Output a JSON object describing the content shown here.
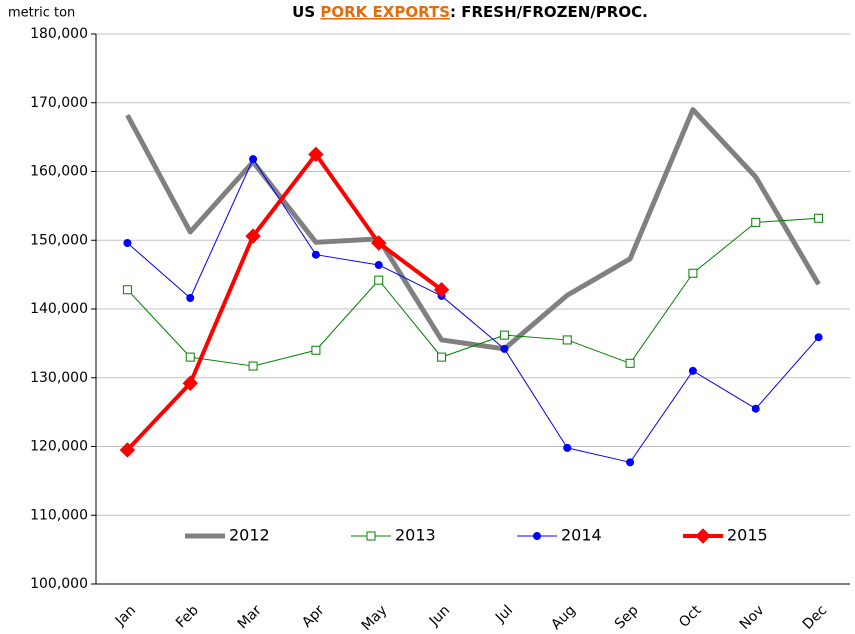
{
  "chart_data": {
    "type": "line",
    "title": {
      "prefix": "US ",
      "highlight": "PORK EXPORTS",
      "suffix": ": FRESH/FROZEN/PROC."
    },
    "highlight_color": "#e46c0a",
    "y_label": "metric ton",
    "categories": [
      "Jan",
      "Feb",
      "Mar",
      "Apr",
      "May",
      "Jun",
      "Jul",
      "Aug",
      "Sep",
      "Oct",
      "Nov",
      "Dec"
    ],
    "ylim": [
      100000,
      180000
    ],
    "yticks": [
      {
        "value": 100000,
        "label": "100,000"
      },
      {
        "value": 110000,
        "label": "110,000"
      },
      {
        "value": 120000,
        "label": "120,000"
      },
      {
        "value": 130000,
        "label": "130,000"
      },
      {
        "value": 140000,
        "label": "140,000"
      },
      {
        "value": 150000,
        "label": "150,000"
      },
      {
        "value": 160000,
        "label": "160,000"
      },
      {
        "value": 170000,
        "label": "170,000"
      },
      {
        "value": 180000,
        "label": "180,000"
      }
    ],
    "grid": true,
    "legend": "bottom",
    "series": [
      {
        "name": "2012",
        "color": "#808080",
        "width": 5,
        "marker": "none",
        "values": [
          168200,
          151200,
          161400,
          149700,
          150200,
          135500,
          134200,
          142000,
          147300,
          169000,
          159200,
          143600
        ]
      },
      {
        "name": "2013",
        "color": "#008000",
        "width": 1,
        "marker": "square",
        "values": [
          142800,
          133000,
          131700,
          134000,
          144200,
          133000,
          136200,
          135500,
          132100,
          145200,
          152600,
          153200
        ]
      },
      {
        "name": "2014",
        "color": "#0000ff",
        "width": 1,
        "marker": "circle",
        "values": [
          149600,
          141600,
          161800,
          147900,
          146400,
          141900,
          134200,
          119800,
          117700,
          131000,
          125500,
          135900
        ]
      },
      {
        "name": "2015",
        "color": "#ff0000",
        "width": 4,
        "marker": "diamond",
        "values": [
          119500,
          129200,
          150600,
          162500,
          149600,
          142800,
          null,
          null,
          null,
          null,
          null,
          null
        ]
      }
    ]
  }
}
